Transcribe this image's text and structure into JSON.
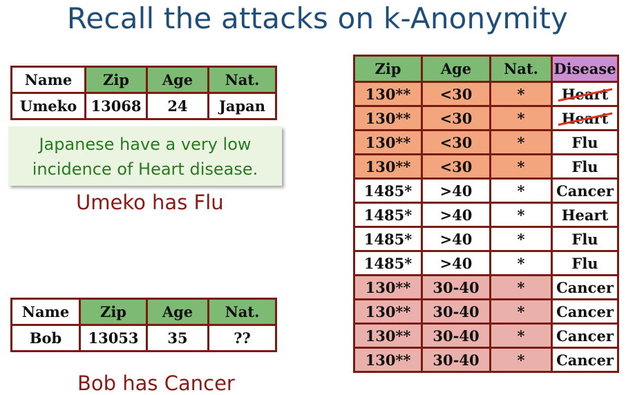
{
  "title": "Recall the attacks on k-Anonymity",
  "umeko_table": {
    "headers": [
      "Name",
      "Zip",
      "Age",
      "Nat."
    ],
    "row": [
      "Umeko",
      "13068",
      "24",
      "Japan"
    ]
  },
  "note": {
    "line1": "Japanese have a very low",
    "line2": "incidence of Heart disease."
  },
  "umeko_result": "Umeko has Flu",
  "bob_table": {
    "headers": [
      "Name",
      "Zip",
      "Age",
      "Nat."
    ],
    "row": [
      "Bob",
      "13053",
      "35",
      "??"
    ]
  },
  "bob_result": "Bob has Cancer",
  "main_table": {
    "headers": [
      "Zip",
      "Age",
      "Nat.",
      "Disease"
    ],
    "rows": [
      {
        "zip": "130**",
        "age": "<30",
        "nat": "*",
        "disease": "Heart"
      },
      {
        "zip": "130**",
        "age": "<30",
        "nat": "*",
        "disease": "Heart"
      },
      {
        "zip": "130**",
        "age": "<30",
        "nat": "*",
        "disease": "Flu"
      },
      {
        "zip": "130**",
        "age": "<30",
        "nat": "*",
        "disease": "Flu"
      },
      {
        "zip": "1485*",
        "age": ">40",
        "nat": "*",
        "disease": "Cancer"
      },
      {
        "zip": "1485*",
        "age": ">40",
        "nat": "*",
        "disease": "Heart"
      },
      {
        "zip": "1485*",
        "age": ">40",
        "nat": "*",
        "disease": "Flu"
      },
      {
        "zip": "1485*",
        "age": ">40",
        "nat": "*",
        "disease": "Flu"
      },
      {
        "zip": "130**",
        "age": "30-40",
        "nat": "*",
        "disease": "Cancer"
      },
      {
        "zip": "130**",
        "age": "30-40",
        "nat": "*",
        "disease": "Cancer"
      },
      {
        "zip": "130**",
        "age": "30-40",
        "nat": "*",
        "disease": "Cancer"
      },
      {
        "zip": "130**",
        "age": "30-40",
        "nat": "*",
        "disease": "Cancer"
      }
    ]
  },
  "colors": {
    "title": "#1f4e79",
    "header_green": "#7dbb74",
    "header_purple": "#c98fd1",
    "group_orange": "#f3a57d",
    "group_pink": "#eab0ab",
    "border": "#7b1c14",
    "strike": "#e0301e",
    "note_text": "#2a7a22",
    "result_text": "#8b1a14"
  }
}
